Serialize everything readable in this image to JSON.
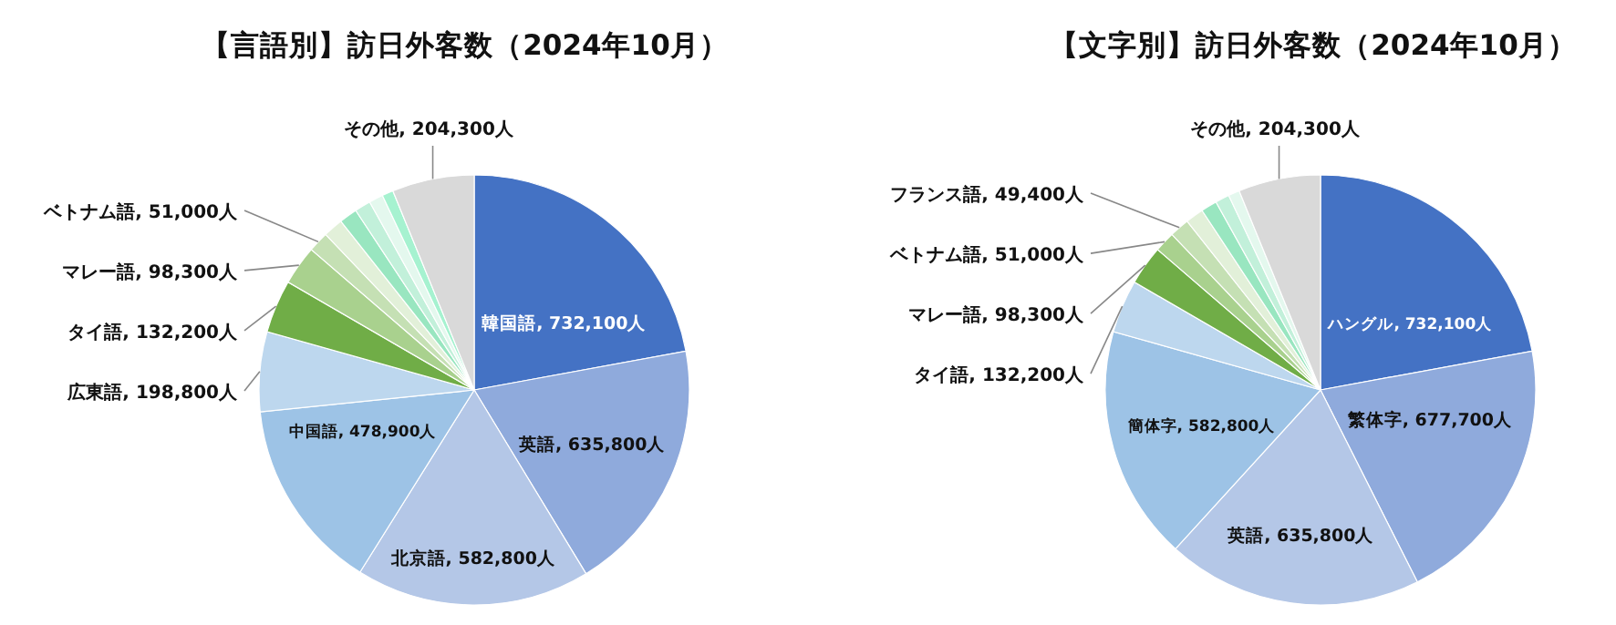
{
  "chart_data": [
    {
      "type": "pie",
      "title": "【言語別】訪日外客数（2024年10月）",
      "categories": [
        "韓国語",
        "英語",
        "北京語",
        "中国語",
        "広東語",
        "タイ語",
        "マレー語",
        "ベトナム語",
        null,
        null,
        null,
        null,
        null,
        "その他"
      ],
      "values": [
        732100,
        635800,
        582800,
        478900,
        198800,
        132200,
        98300,
        51000,
        49400,
        45000,
        40000,
        35000,
        28000,
        204300
      ],
      "value_labels": [
        "732,100人",
        "635,800人",
        "582,800人",
        "478,900人",
        "198,800人",
        "132,200人",
        "98,300人",
        "51,000人",
        null,
        null,
        null,
        null,
        null,
        "204,300人"
      ],
      "colors": [
        "#4472c4",
        "#8faadc",
        "#b4c7e7",
        "#9dc3e6",
        "#bdd7ee",
        "#70ad47",
        "#a9d18e",
        "#c5e0b4",
        "#e2f0d9",
        "#99e6c0",
        "#c2f0da",
        "#e4f8ee",
        "#a6f2d0",
        "#d9d9d9"
      ]
    },
    {
      "type": "pie",
      "title": "【文字別】訪日外客数（2024年10月）",
      "categories": [
        "ハングル",
        "繁体字",
        "英語",
        "簡体字",
        "タイ語",
        "マレー語",
        "ベトナム語",
        "フランス語",
        null,
        null,
        null,
        null,
        "その他"
      ],
      "values": [
        732100,
        677700,
        635800,
        582800,
        132200,
        98300,
        51000,
        49400,
        45000,
        40000,
        35000,
        28000,
        204300
      ],
      "value_labels": [
        "732,100人",
        "677,700人",
        "635,800人",
        "582,800人",
        "132,200人",
        "98,300人",
        "51,000人",
        "49,400人",
        null,
        null,
        null,
        null,
        "204,300人"
      ],
      "colors": [
        "#4472c4",
        "#8faadc",
        "#b4c7e7",
        "#9dc3e6",
        "#bdd7ee",
        "#70ad47",
        "#a9d18e",
        "#c5e0b4",
        "#e2f0d9",
        "#99e6c0",
        "#c2f0da",
        "#e4f8ee",
        "#d9d9d9"
      ]
    }
  ]
}
